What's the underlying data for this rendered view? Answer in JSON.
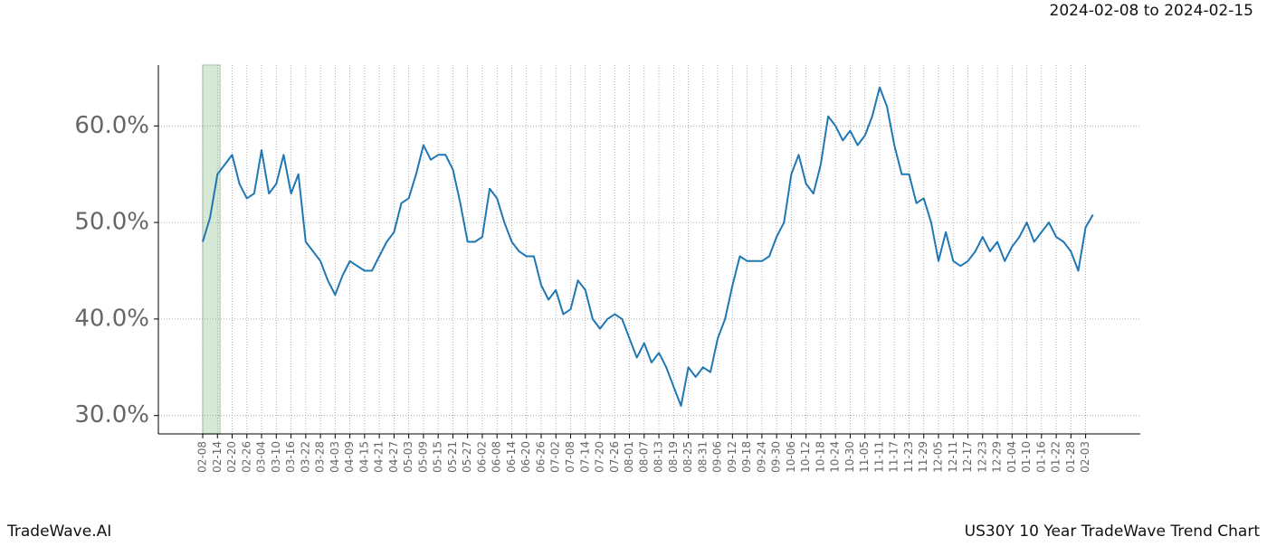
{
  "chart_data": {
    "type": "line",
    "title": "US30Y 10 Year TradeWave Trend Chart",
    "subtitle": "2024-02-08 to 2024-02-15",
    "brand": "TradeWave.AI",
    "categories": [
      "02-08",
      null,
      "02-14",
      null,
      "02-20",
      null,
      "02-26",
      null,
      "03-04",
      null,
      "03-10",
      null,
      "03-16",
      null,
      "03-22",
      null,
      "03-28",
      null,
      "04-03",
      null,
      "04-09",
      null,
      "04-15",
      null,
      "04-21",
      null,
      "04-27",
      null,
      "05-03",
      null,
      "05-09",
      null,
      "05-15",
      null,
      "05-21",
      null,
      "05-27",
      null,
      "06-02",
      null,
      "06-08",
      null,
      "06-14",
      null,
      "06-20",
      null,
      "06-26",
      null,
      "07-02",
      null,
      "07-08",
      null,
      "07-14",
      null,
      "07-20",
      null,
      "07-26",
      null,
      "08-01",
      null,
      "08-07",
      null,
      "08-13",
      null,
      "08-19",
      null,
      "08-25",
      null,
      "08-31",
      null,
      "09-06",
      null,
      "09-12",
      null,
      "09-18",
      null,
      "09-24",
      null,
      "09-30",
      null,
      "10-06",
      null,
      "10-12",
      null,
      "10-18",
      null,
      "10-24",
      null,
      "10-30",
      null,
      "11-05",
      null,
      "11-11",
      null,
      "11-17",
      null,
      "11-23",
      null,
      "11-29",
      null,
      "12-05",
      null,
      "12-11",
      null,
      "12-17",
      null,
      "12-23",
      null,
      "12-29",
      null,
      "01-04",
      null,
      "01-10",
      null,
      "01-16",
      null,
      "01-22",
      null,
      "01-28",
      null,
      "02-03",
      null
    ],
    "series": [
      {
        "name": "US30Y",
        "color": "#1f77b4",
        "values": [
          48,
          50.5,
          55,
          56,
          57,
          54,
          52.5,
          53,
          57.5,
          53,
          54,
          57,
          53,
          55,
          48,
          47,
          46,
          44,
          42.5,
          44.5,
          46,
          45.5,
          45,
          45,
          46.5,
          48,
          49,
          52,
          52.5,
          55,
          58,
          56.5,
          57,
          57,
          55.5,
          52,
          48,
          48,
          48.5,
          53.5,
          52.5,
          50,
          48,
          47,
          46.5,
          46.5,
          43.5,
          42,
          43,
          40.5,
          41,
          44,
          43,
          40,
          39,
          40,
          40.5,
          40,
          38,
          36,
          37.5,
          35.5,
          36.5,
          35,
          33,
          31,
          35,
          34,
          35,
          34.5,
          38,
          40,
          43.5,
          46.5,
          46,
          46,
          46,
          46.5,
          48.5,
          50,
          55,
          57,
          54,
          53,
          56,
          61,
          60,
          58.5,
          59.5,
          58,
          59,
          61,
          64,
          62,
          58,
          55,
          55,
          52,
          52.5,
          50,
          46,
          49,
          46,
          45.5,
          46,
          47,
          48.5,
          47,
          48,
          46,
          47.5,
          48.5,
          50,
          48,
          49,
          50,
          48.5,
          48,
          47,
          45,
          49.5,
          50.8
        ]
      }
    ],
    "ylim": [
      28.1,
      66.3
    ],
    "yticks": [
      {
        "value": 30,
        "label": "30.0%"
      },
      {
        "value": 40,
        "label": "40.0%"
      },
      {
        "value": 50,
        "label": "50.0%"
      },
      {
        "value": 60,
        "label": "60.0%"
      }
    ],
    "grid": true,
    "highlight_color": "#d6e9d6"
  }
}
